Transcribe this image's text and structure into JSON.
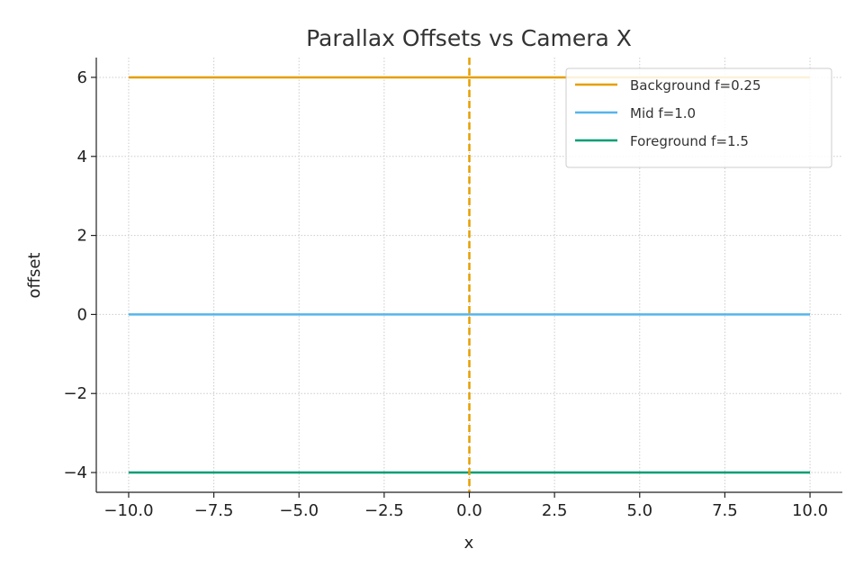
{
  "chart_data": {
    "type": "line",
    "title": "Parallax Offsets vs Camera X",
    "xlabel": "x",
    "ylabel": "offset",
    "xlim": [
      -10.95,
      10.95
    ],
    "ylim": [
      -4.5,
      6.5
    ],
    "xticks": [
      -10.0,
      -7.5,
      -5.0,
      -2.5,
      0.0,
      2.5,
      5.0,
      7.5,
      10.0
    ],
    "xtick_labels": [
      "−10.0",
      "−7.5",
      "−5.0",
      "−2.5",
      "0.0",
      "2.5",
      "5.0",
      "7.5",
      "10.0"
    ],
    "yticks": [
      -4,
      -2,
      0,
      2,
      4,
      6
    ],
    "ytick_labels": [
      "−4",
      "−2",
      "0",
      "2",
      "4",
      "6"
    ],
    "grid": true,
    "legend_position": "top-right",
    "series": [
      {
        "name": "Background f=0.25",
        "color": "#E69F00",
        "x": [
          -10,
          10
        ],
        "y": [
          6,
          6
        ]
      },
      {
        "name": "Mid f=1.0",
        "color": "#56B4E9",
        "x": [
          -10,
          10
        ],
        "y": [
          0,
          0
        ]
      },
      {
        "name": "Foreground f=1.5",
        "color": "#009E73",
        "x": [
          -10,
          10
        ],
        "y": [
          -4,
          -4
        ]
      }
    ],
    "vline": {
      "x": 0,
      "color": "#E69F00",
      "style": "dashed"
    }
  }
}
